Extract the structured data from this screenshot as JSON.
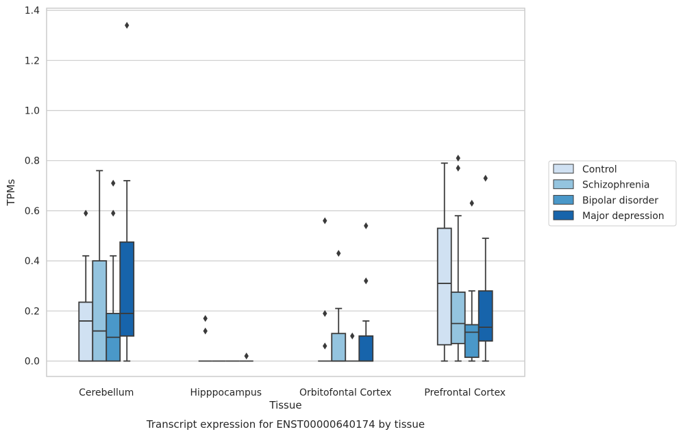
{
  "caption": "Transcript expression for ENST00000640174 by tissue",
  "chart_data": {
    "type": "box",
    "xlabel": "Tissue",
    "ylabel": "TPMs",
    "ylim": [
      -0.065,
      1.41
    ],
    "yticks": [
      "0.0",
      "0.2",
      "0.4",
      "0.6",
      "0.8",
      "1.0",
      "1.2",
      "1.4"
    ],
    "grid": "horizontal",
    "legend_position": "right",
    "categories": [
      "Cerebellum",
      "Hipppocampus",
      "Orbitofontal Cortex",
      "Prefrontal Cortex"
    ],
    "series": [
      {
        "name": "Control",
        "color": "#d0e1f2",
        "boxes": [
          {
            "whislo": 0.0,
            "q1": 0.0,
            "med": 0.16,
            "q3": 0.235,
            "whishi": 0.42,
            "fliers": [
              0.59
            ]
          },
          {
            "whislo": 0.0,
            "q1": 0.0,
            "med": 0.0,
            "q3": 0.0,
            "whishi": 0.0,
            "fliers": [
              0.12,
              0.17
            ]
          },
          {
            "whislo": 0.0,
            "q1": 0.0,
            "med": 0.0,
            "q3": 0.0,
            "whishi": 0.0,
            "fliers": [
              0.06,
              0.19,
              0.56
            ]
          },
          {
            "whislo": 0.0,
            "q1": 0.065,
            "med": 0.31,
            "q3": 0.53,
            "whishi": 0.79,
            "fliers": []
          }
        ]
      },
      {
        "name": "Schizophrenia",
        "color": "#94c4df",
        "boxes": [
          {
            "whislo": 0.0,
            "q1": 0.0,
            "med": 0.12,
            "q3": 0.4,
            "whishi": 0.76,
            "fliers": []
          },
          {
            "whislo": 0.0,
            "q1": 0.0,
            "med": 0.0,
            "q3": 0.0,
            "whishi": 0.0,
            "fliers": []
          },
          {
            "whislo": 0.0,
            "q1": 0.0,
            "med": 0.0,
            "q3": 0.11,
            "whishi": 0.21,
            "fliers": [
              0.43
            ]
          },
          {
            "whislo": 0.0,
            "q1": 0.07,
            "med": 0.15,
            "q3": 0.275,
            "whishi": 0.58,
            "fliers": [
              0.77,
              0.81
            ]
          }
        ]
      },
      {
        "name": "Bipolar disorder",
        "color": "#4a98c9",
        "boxes": [
          {
            "whislo": 0.0,
            "q1": 0.0,
            "med": 0.095,
            "q3": 0.19,
            "whishi": 0.42,
            "fliers": [
              0.59,
              0.71
            ]
          },
          {
            "whislo": 0.0,
            "q1": 0.0,
            "med": 0.0,
            "q3": 0.0,
            "whishi": 0.0,
            "fliers": []
          },
          {
            "whislo": 0.0,
            "q1": 0.0,
            "med": 0.0,
            "q3": 0.0,
            "whishi": 0.0,
            "fliers": [
              0.1
            ]
          },
          {
            "whislo": 0.0,
            "q1": 0.015,
            "med": 0.115,
            "q3": 0.145,
            "whishi": 0.28,
            "fliers": [
              0.63
            ]
          }
        ]
      },
      {
        "name": "Major depression",
        "color": "#1764ab",
        "boxes": [
          {
            "whislo": 0.0,
            "q1": 0.1,
            "med": 0.19,
            "q3": 0.475,
            "whishi": 0.72,
            "fliers": [
              1.34
            ]
          },
          {
            "whislo": 0.0,
            "q1": 0.0,
            "med": 0.0,
            "q3": 0.0,
            "whishi": 0.0,
            "fliers": [
              0.02
            ]
          },
          {
            "whislo": 0.0,
            "q1": 0.0,
            "med": 0.0,
            "q3": 0.1,
            "whishi": 0.16,
            "fliers": [
              0.32,
              0.54
            ]
          },
          {
            "whislo": 0.0,
            "q1": 0.08,
            "med": 0.135,
            "q3": 0.28,
            "whishi": 0.49,
            "fliers": [
              0.73
            ]
          }
        ]
      }
    ]
  }
}
